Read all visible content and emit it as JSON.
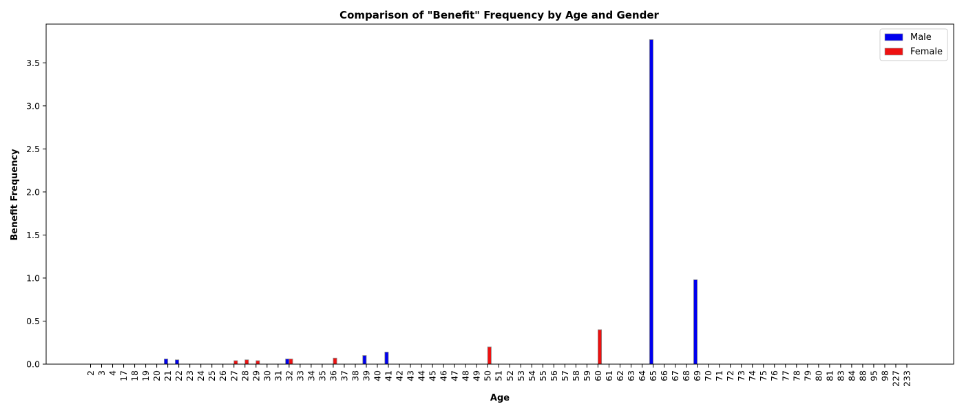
{
  "chart_data": {
    "type": "bar",
    "title": "Comparison of \"Benefit\" Frequency by Age and Gender",
    "xlabel": "Age",
    "ylabel": "Benefit Frequency",
    "ylim": [
      0,
      3.95
    ],
    "yticks": [
      "0.0",
      "0.5",
      "1.0",
      "1.5",
      "2.0",
      "2.5",
      "3.0",
      "3.5"
    ],
    "grid": false,
    "legend_position": "top-right",
    "categories": [
      "2",
      "3",
      "4",
      "17",
      "18",
      "19",
      "20",
      "21",
      "22",
      "23",
      "24",
      "25",
      "26",
      "27",
      "28",
      "29",
      "30",
      "31",
      "32",
      "33",
      "34",
      "35",
      "36",
      "37",
      "38",
      "39",
      "40",
      "41",
      "42",
      "43",
      "44",
      "45",
      "46",
      "47",
      "48",
      "49",
      "50",
      "51",
      "52",
      "53",
      "54",
      "55",
      "56",
      "57",
      "58",
      "59",
      "60",
      "61",
      "62",
      "63",
      "64",
      "65",
      "66",
      "67",
      "68",
      "69",
      "70",
      "71",
      "72",
      "73",
      "74",
      "75",
      "76",
      "77",
      "78",
      "79",
      "80",
      "81",
      "83",
      "84",
      "88",
      "95",
      "98",
      "227",
      "233"
    ],
    "series": [
      {
        "name": "Male",
        "color": "#0000ee",
        "values": [
          0,
          0,
          0,
          0,
          0,
          0,
          0,
          0.06,
          0.05,
          0,
          0,
          0,
          0,
          0,
          0,
          0,
          0,
          0,
          0.06,
          0,
          0,
          0,
          0,
          0,
          0,
          0.1,
          0,
          0.14,
          0,
          0,
          0,
          0,
          0,
          0,
          0,
          0,
          0,
          0,
          0,
          0,
          0,
          0,
          0,
          0,
          0,
          0,
          0,
          0,
          0,
          0,
          0,
          3.77,
          0,
          0,
          0,
          0.98,
          0,
          0,
          0,
          0,
          0,
          0,
          0,
          0,
          0,
          0,
          0,
          0,
          0,
          0,
          0,
          0,
          0,
          0,
          0
        ]
      },
      {
        "name": "Female",
        "color": "#ee1111",
        "values": [
          0,
          0,
          0,
          0,
          0,
          0,
          0,
          0,
          0,
          0,
          0,
          0,
          0,
          0.04,
          0.05,
          0.04,
          0,
          0,
          0.06,
          0,
          0,
          0,
          0.07,
          0,
          0,
          0,
          0,
          0,
          0,
          0,
          0,
          0,
          0,
          0,
          0,
          0,
          0.2,
          0,
          0,
          0,
          0,
          0,
          0,
          0,
          0,
          0,
          0.4,
          0,
          0,
          0,
          0,
          0,
          0,
          0,
          0,
          0,
          0,
          0,
          0,
          0,
          0,
          0,
          0,
          0,
          0,
          0,
          0,
          0,
          0,
          0,
          0,
          0,
          0,
          0,
          0
        ]
      }
    ]
  }
}
